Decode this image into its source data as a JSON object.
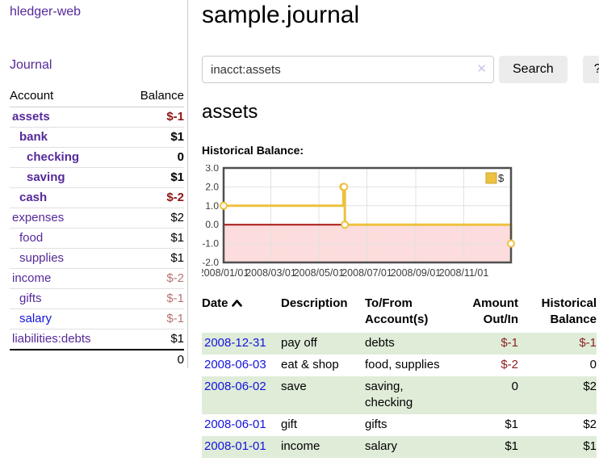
{
  "app": {
    "title": "hledger-web"
  },
  "sidebar": {
    "journal_link": "Journal",
    "accounts_table": {
      "headers": {
        "account": "Account",
        "balance": "Balance"
      },
      "rows": [
        {
          "label": "assets",
          "depth": 1,
          "bold": true,
          "balance": "$-1",
          "balance_tone": "neg",
          "link_tone": "purple"
        },
        {
          "label": "bank",
          "depth": 2,
          "bold": true,
          "balance": "$1",
          "balance_tone": "pos",
          "link_tone": "purple"
        },
        {
          "label": "checking",
          "depth": 3,
          "bold": true,
          "balance": "0",
          "balance_tone": "pos",
          "link_tone": "purple"
        },
        {
          "label": "saving",
          "depth": 3,
          "bold": true,
          "balance": "$1",
          "balance_tone": "pos",
          "link_tone": "purple"
        },
        {
          "label": "cash",
          "depth": 2,
          "bold": true,
          "balance": "$-2",
          "balance_tone": "neg",
          "link_tone": "purple"
        },
        {
          "label": "expenses",
          "depth": 1,
          "bold": false,
          "balance": "$2",
          "balance_tone": "pos",
          "link_tone": "purple"
        },
        {
          "label": "food",
          "depth": 2,
          "bold": false,
          "balance": "$1",
          "balance_tone": "pos",
          "link_tone": "purple"
        },
        {
          "label": "supplies",
          "depth": 2,
          "bold": false,
          "balance": "$1",
          "balance_tone": "pos",
          "link_tone": "purple"
        },
        {
          "label": "income",
          "depth": 1,
          "bold": false,
          "balance": "$-2",
          "balance_tone": "neg-soft",
          "link_tone": "purple"
        },
        {
          "label": "gifts",
          "depth": 2,
          "bold": false,
          "balance": "$-1",
          "balance_tone": "neg-soft",
          "link_tone": "purple"
        },
        {
          "label": "salary",
          "depth": 2,
          "bold": false,
          "balance": "$-1",
          "balance_tone": "neg-soft",
          "link_tone": "blue"
        },
        {
          "label": "liabilities:debts",
          "depth": 1,
          "bold": false,
          "balance": "$1",
          "balance_tone": "pos",
          "link_tone": "purple"
        }
      ],
      "total": "0"
    }
  },
  "main": {
    "title": "sample.journal",
    "search": {
      "value": "inacct:assets",
      "placeholder": "",
      "clear_icon": "✕",
      "search_button": "Search",
      "help_button": "?"
    },
    "account_heading": "assets",
    "chart_label": "Historical Balance:"
  },
  "chart_data": {
    "type": "line",
    "step": true,
    "title": "Historical Balance",
    "series": [
      {
        "name": "$",
        "color": "#edc240",
        "points": [
          [
            "2008-01-01",
            1
          ],
          [
            "2008-06-01",
            2
          ],
          [
            "2008-06-02",
            2
          ],
          [
            "2008-06-03",
            0
          ],
          [
            "2008-12-31",
            -1
          ]
        ]
      }
    ],
    "x_range": [
      "2008-01-01",
      "2008-12-31"
    ],
    "ylim": [
      -2,
      3
    ],
    "y_ticks": [
      "3.0",
      "2.0",
      "1.0",
      "0.0",
      "-1.0",
      "-2.0"
    ],
    "x_ticks": [
      "2008/01/01",
      "2008/03/01",
      "2008/05/01",
      "2008/07/01",
      "2008/09/01",
      "2008/11/01"
    ],
    "legend": {
      "label": "$",
      "position": "top-right"
    },
    "grid": true,
    "colors": {
      "line": "#edc240",
      "legend_border": "#c9a42e",
      "negative_region": "#fcdcdc",
      "zero_line": "#a81414",
      "plot_border": "#4f4f4f",
      "gridline": "#e2e2e2",
      "tick_text": "#3c3c3c"
    }
  },
  "register_table": {
    "headers": {
      "date": "Date",
      "description": "Description",
      "accounts": "To/From Account(s)",
      "amount": "Amount Out/In",
      "balance": "Historical Balance"
    },
    "rows": [
      {
        "date": "2008-12-31",
        "description": "pay off",
        "accounts": "debts",
        "amount": "$-1",
        "amount_negative": true,
        "balance": "$-1",
        "balance_negative": true
      },
      {
        "date": "2008-06-03",
        "description": "eat & shop",
        "accounts": "food, supplies",
        "amount": "$-2",
        "amount_negative": true,
        "balance": "0",
        "balance_negative": false
      },
      {
        "date": "2008-06-02",
        "description": "save",
        "accounts": "saving, checking",
        "amount": "0",
        "amount_negative": false,
        "balance": "$2",
        "balance_negative": false
      },
      {
        "date": "2008-06-01",
        "description": "gift",
        "accounts": "gifts",
        "amount": "$1",
        "amount_negative": false,
        "balance": "$2",
        "balance_negative": false
      },
      {
        "date": "2008-01-01",
        "description": "income",
        "accounts": "salary",
        "amount": "$1",
        "amount_negative": false,
        "balance": "$1",
        "balance_negative": false
      }
    ]
  }
}
